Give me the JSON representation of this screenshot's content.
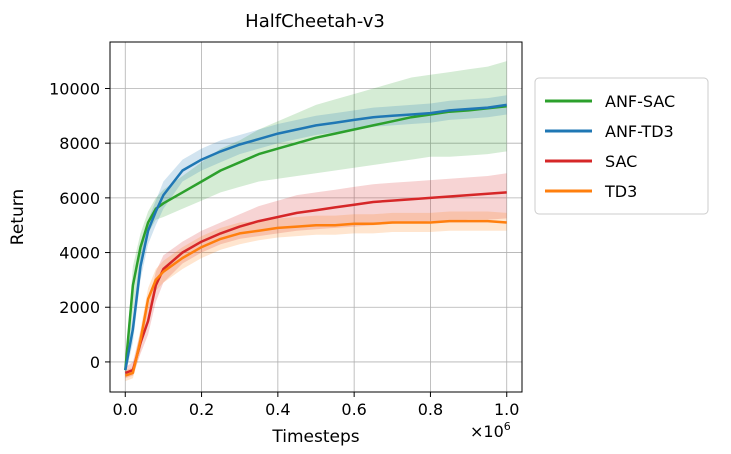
{
  "chart_data": {
    "type": "line",
    "title": "HalfCheetah-v3",
    "xlabel": "Timesteps",
    "ylabel": "Return",
    "x_multiplier_label": "×10",
    "x_multiplier_exp": "6",
    "xlim": [
      -0.04,
      1.04
    ],
    "ylim": [
      -1100,
      11700
    ],
    "xticks": [
      0.0,
      0.2,
      0.4,
      0.6,
      0.8,
      1.0
    ],
    "xtick_labels": [
      "0.0",
      "0.2",
      "0.4",
      "0.6",
      "0.8",
      "1.0"
    ],
    "yticks": [
      0,
      2000,
      4000,
      6000,
      8000,
      10000
    ],
    "ytick_labels": [
      "0",
      "2000",
      "4000",
      "6000",
      "8000",
      "10000"
    ],
    "grid": true,
    "legend_position": "outside-right",
    "x": [
      0.0,
      0.02,
      0.04,
      0.06,
      0.08,
      0.1,
      0.15,
      0.2,
      0.25,
      0.3,
      0.35,
      0.4,
      0.45,
      0.5,
      0.55,
      0.6,
      0.65,
      0.7,
      0.75,
      0.8,
      0.85,
      0.9,
      0.95,
      1.0
    ],
    "series": [
      {
        "name": "ANF-SAC",
        "color": "#2ca02c",
        "mean": [
          -300,
          2800,
          4200,
          5100,
          5600,
          5800,
          6200,
          6600,
          7000,
          7300,
          7600,
          7800,
          8000,
          8200,
          8350,
          8500,
          8650,
          8800,
          8950,
          9050,
          9150,
          9200,
          9280,
          9350
        ],
        "lower": [
          -600,
          1800,
          3700,
          4700,
          5200,
          5300,
          5600,
          5900,
          6200,
          6400,
          6600,
          6700,
          6800,
          6900,
          7000,
          7100,
          7200,
          7300,
          7400,
          7500,
          7500,
          7550,
          7600,
          7700
        ],
        "upper": [
          0,
          3500,
          4700,
          5500,
          6000,
          6300,
          6800,
          7300,
          7800,
          8100,
          8500,
          8800,
          9100,
          9400,
          9600,
          9800,
          10000,
          10200,
          10400,
          10500,
          10600,
          10700,
          10800,
          11000
        ]
      },
      {
        "name": "ANF-TD3",
        "color": "#1f77b4",
        "mean": [
          -300,
          1200,
          3500,
          4800,
          5500,
          6100,
          7000,
          7400,
          7700,
          7950,
          8150,
          8350,
          8500,
          8650,
          8750,
          8850,
          8950,
          9000,
          9050,
          9100,
          9200,
          9250,
          9300,
          9400
        ],
        "lower": [
          -500,
          700,
          3000,
          4300,
          5000,
          5600,
          6600,
          7000,
          7300,
          7600,
          7800,
          8000,
          8150,
          8300,
          8400,
          8500,
          8600,
          8650,
          8700,
          8750,
          8850,
          8900,
          8950,
          9050
        ],
        "upper": [
          -100,
          1700,
          4000,
          5200,
          5900,
          6600,
          7400,
          7800,
          8100,
          8300,
          8500,
          8700,
          8850,
          9000,
          9100,
          9200,
          9300,
          9350,
          9400,
          9450,
          9550,
          9600,
          9650,
          9750
        ]
      },
      {
        "name": "SAC",
        "color": "#d62728",
        "mean": [
          -400,
          -300,
          700,
          1500,
          2800,
          3400,
          4000,
          4400,
          4700,
          4950,
          5150,
          5300,
          5450,
          5550,
          5650,
          5750,
          5850,
          5900,
          5950,
          6000,
          6050,
          6100,
          6150,
          6200
        ],
        "lower": [
          -600,
          -500,
          300,
          1000,
          2200,
          2900,
          3600,
          4000,
          4300,
          4500,
          4600,
          4700,
          4800,
          4850,
          4900,
          4950,
          5000,
          5050,
          5100,
          5150,
          5150,
          5200,
          5200,
          5250
        ],
        "upper": [
          -200,
          0,
          1100,
          2000,
          3300,
          3900,
          4400,
          4800,
          5100,
          5400,
          5700,
          5900,
          6100,
          6200,
          6300,
          6400,
          6500,
          6550,
          6600,
          6650,
          6700,
          6750,
          6800,
          6900
        ]
      },
      {
        "name": "TD3",
        "color": "#ff7f0e",
        "mean": [
          -500,
          -400,
          800,
          2300,
          3000,
          3300,
          3800,
          4200,
          4500,
          4700,
          4800,
          4900,
          4950,
          5000,
          5000,
          5050,
          5050,
          5100,
          5100,
          5100,
          5150,
          5150,
          5150,
          5100
        ],
        "lower": [
          -700,
          -600,
          400,
          1900,
          2600,
          2900,
          3400,
          3800,
          4100,
          4300,
          4450,
          4550,
          4600,
          4650,
          4650,
          4700,
          4700,
          4750,
          4750,
          4750,
          4800,
          4800,
          4800,
          4800
        ],
        "upper": [
          -300,
          -200,
          1200,
          2700,
          3400,
          3700,
          4200,
          4600,
          4900,
          5100,
          5150,
          5250,
          5300,
          5350,
          5350,
          5400,
          5400,
          5450,
          5450,
          5450,
          5500,
          5500,
          5500,
          5450
        ]
      }
    ]
  }
}
